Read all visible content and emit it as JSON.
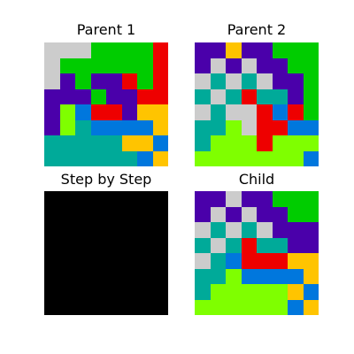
{
  "palette": {
    "C": "#cccccc",
    "G": "#00cc00",
    "R": "#ee0000",
    "P": "#4a00aa",
    "L": "#7fff00",
    "B": "#0077dd",
    "Y": "#ffc400",
    "T": "#00aa99",
    "K": "#000000"
  },
  "panels": {
    "parent1": {
      "title": "Parent 1",
      "rows": [
        "CCCGGGGR",
        "CGGGGGGR",
        "CPGPPRGR",
        "PPPGPPRR",
        "PLBRRPYY",
        "PLTBBBBY",
        "TTTTTYYB",
        "TTTTTTBY"
      ]
    },
    "parent2": {
      "title": "Parent 2",
      "rows": [
        "PPYPPGGG",
        "PCPCPPGG",
        "CTCTCPPG",
        "TCTRTTPG",
        "CTCCRBRG",
        "TTLCRRBB",
        "TLLLRLLL",
        "LLLLLLLB"
      ]
    },
    "step": {
      "title": "Step by Step",
      "fill": "K"
    },
    "child": {
      "title": "Child",
      "rows": [
        "PPCPPGGG",
        "PCPCPPGG",
        "CTCTCPPP",
        "TCTRTTPP",
        "CTBRRRYY",
        "TTLBBBBY",
        "TLLLLLYB",
        "LLLLLLBY"
      ]
    }
  }
}
